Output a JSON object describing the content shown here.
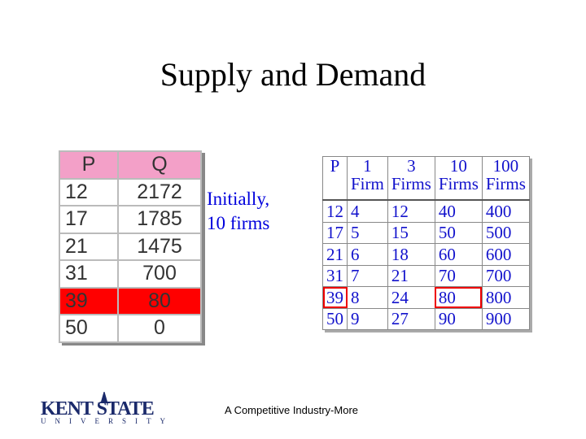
{
  "title": "Supply and Demand",
  "left_table": {
    "header": [
      "P",
      "Q"
    ],
    "rows": [
      [
        12,
        2172
      ],
      [
        17,
        1785
      ],
      [
        21,
        1475
      ],
      [
        31,
        700
      ],
      [
        39,
        80
      ],
      [
        50,
        0
      ]
    ]
  },
  "note": [
    "Initially,",
    "10 firms"
  ],
  "right_table": {
    "header": [
      [
        "P"
      ],
      [
        "1",
        "Firm"
      ],
      [
        "3",
        "Firms"
      ],
      [
        "10",
        "Firms"
      ],
      [
        "100",
        "Firms"
      ]
    ],
    "rows": [
      [
        12,
        4,
        12,
        40,
        400
      ],
      [
        17,
        5,
        15,
        50,
        500
      ],
      [
        21,
        6,
        18,
        60,
        600
      ],
      [
        31,
        7,
        21,
        70,
        700
      ],
      [
        39,
        8,
        24,
        80,
        800
      ],
      [
        50,
        9,
        27,
        90,
        900
      ]
    ]
  },
  "footer": "A Competitive Industry-More",
  "logo": {
    "name": "KENT STATE",
    "sub": "UNIVERSITY"
  }
}
